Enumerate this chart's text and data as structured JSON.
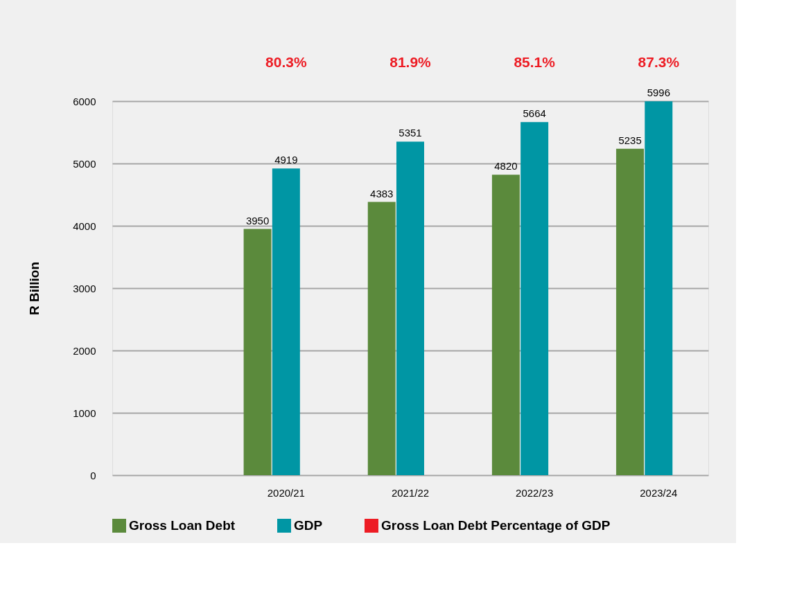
{
  "chart_data": {
    "type": "bar",
    "ylabel": "R Billion",
    "categories": [
      null,
      "2020/21",
      "2021/22",
      "2022/23",
      "2023/24"
    ],
    "series": [
      {
        "name": "Gross Loan Debt",
        "color": "#5b8a3c",
        "values": [
          null,
          3950,
          4383,
          4820,
          5235
        ]
      },
      {
        "name": "GDP",
        "color": "#0096a4",
        "values": [
          null,
          4919,
          5351,
          5664,
          5996
        ]
      },
      {
        "name": "Gross Loan Debt Percentage of GDP",
        "color": "#ed1c24",
        "values": [
          null,
          null,
          null,
          null,
          null
        ]
      }
    ],
    "annotations": [
      "80.3%",
      "81.9%",
      "85.1%",
      "87.3%"
    ],
    "ylim": [
      0,
      6000
    ],
    "yticks": [
      0,
      1000,
      2000,
      3000,
      4000,
      5000,
      6000
    ],
    "grid": "y",
    "legend": "bottom",
    "data_labels": true
  }
}
